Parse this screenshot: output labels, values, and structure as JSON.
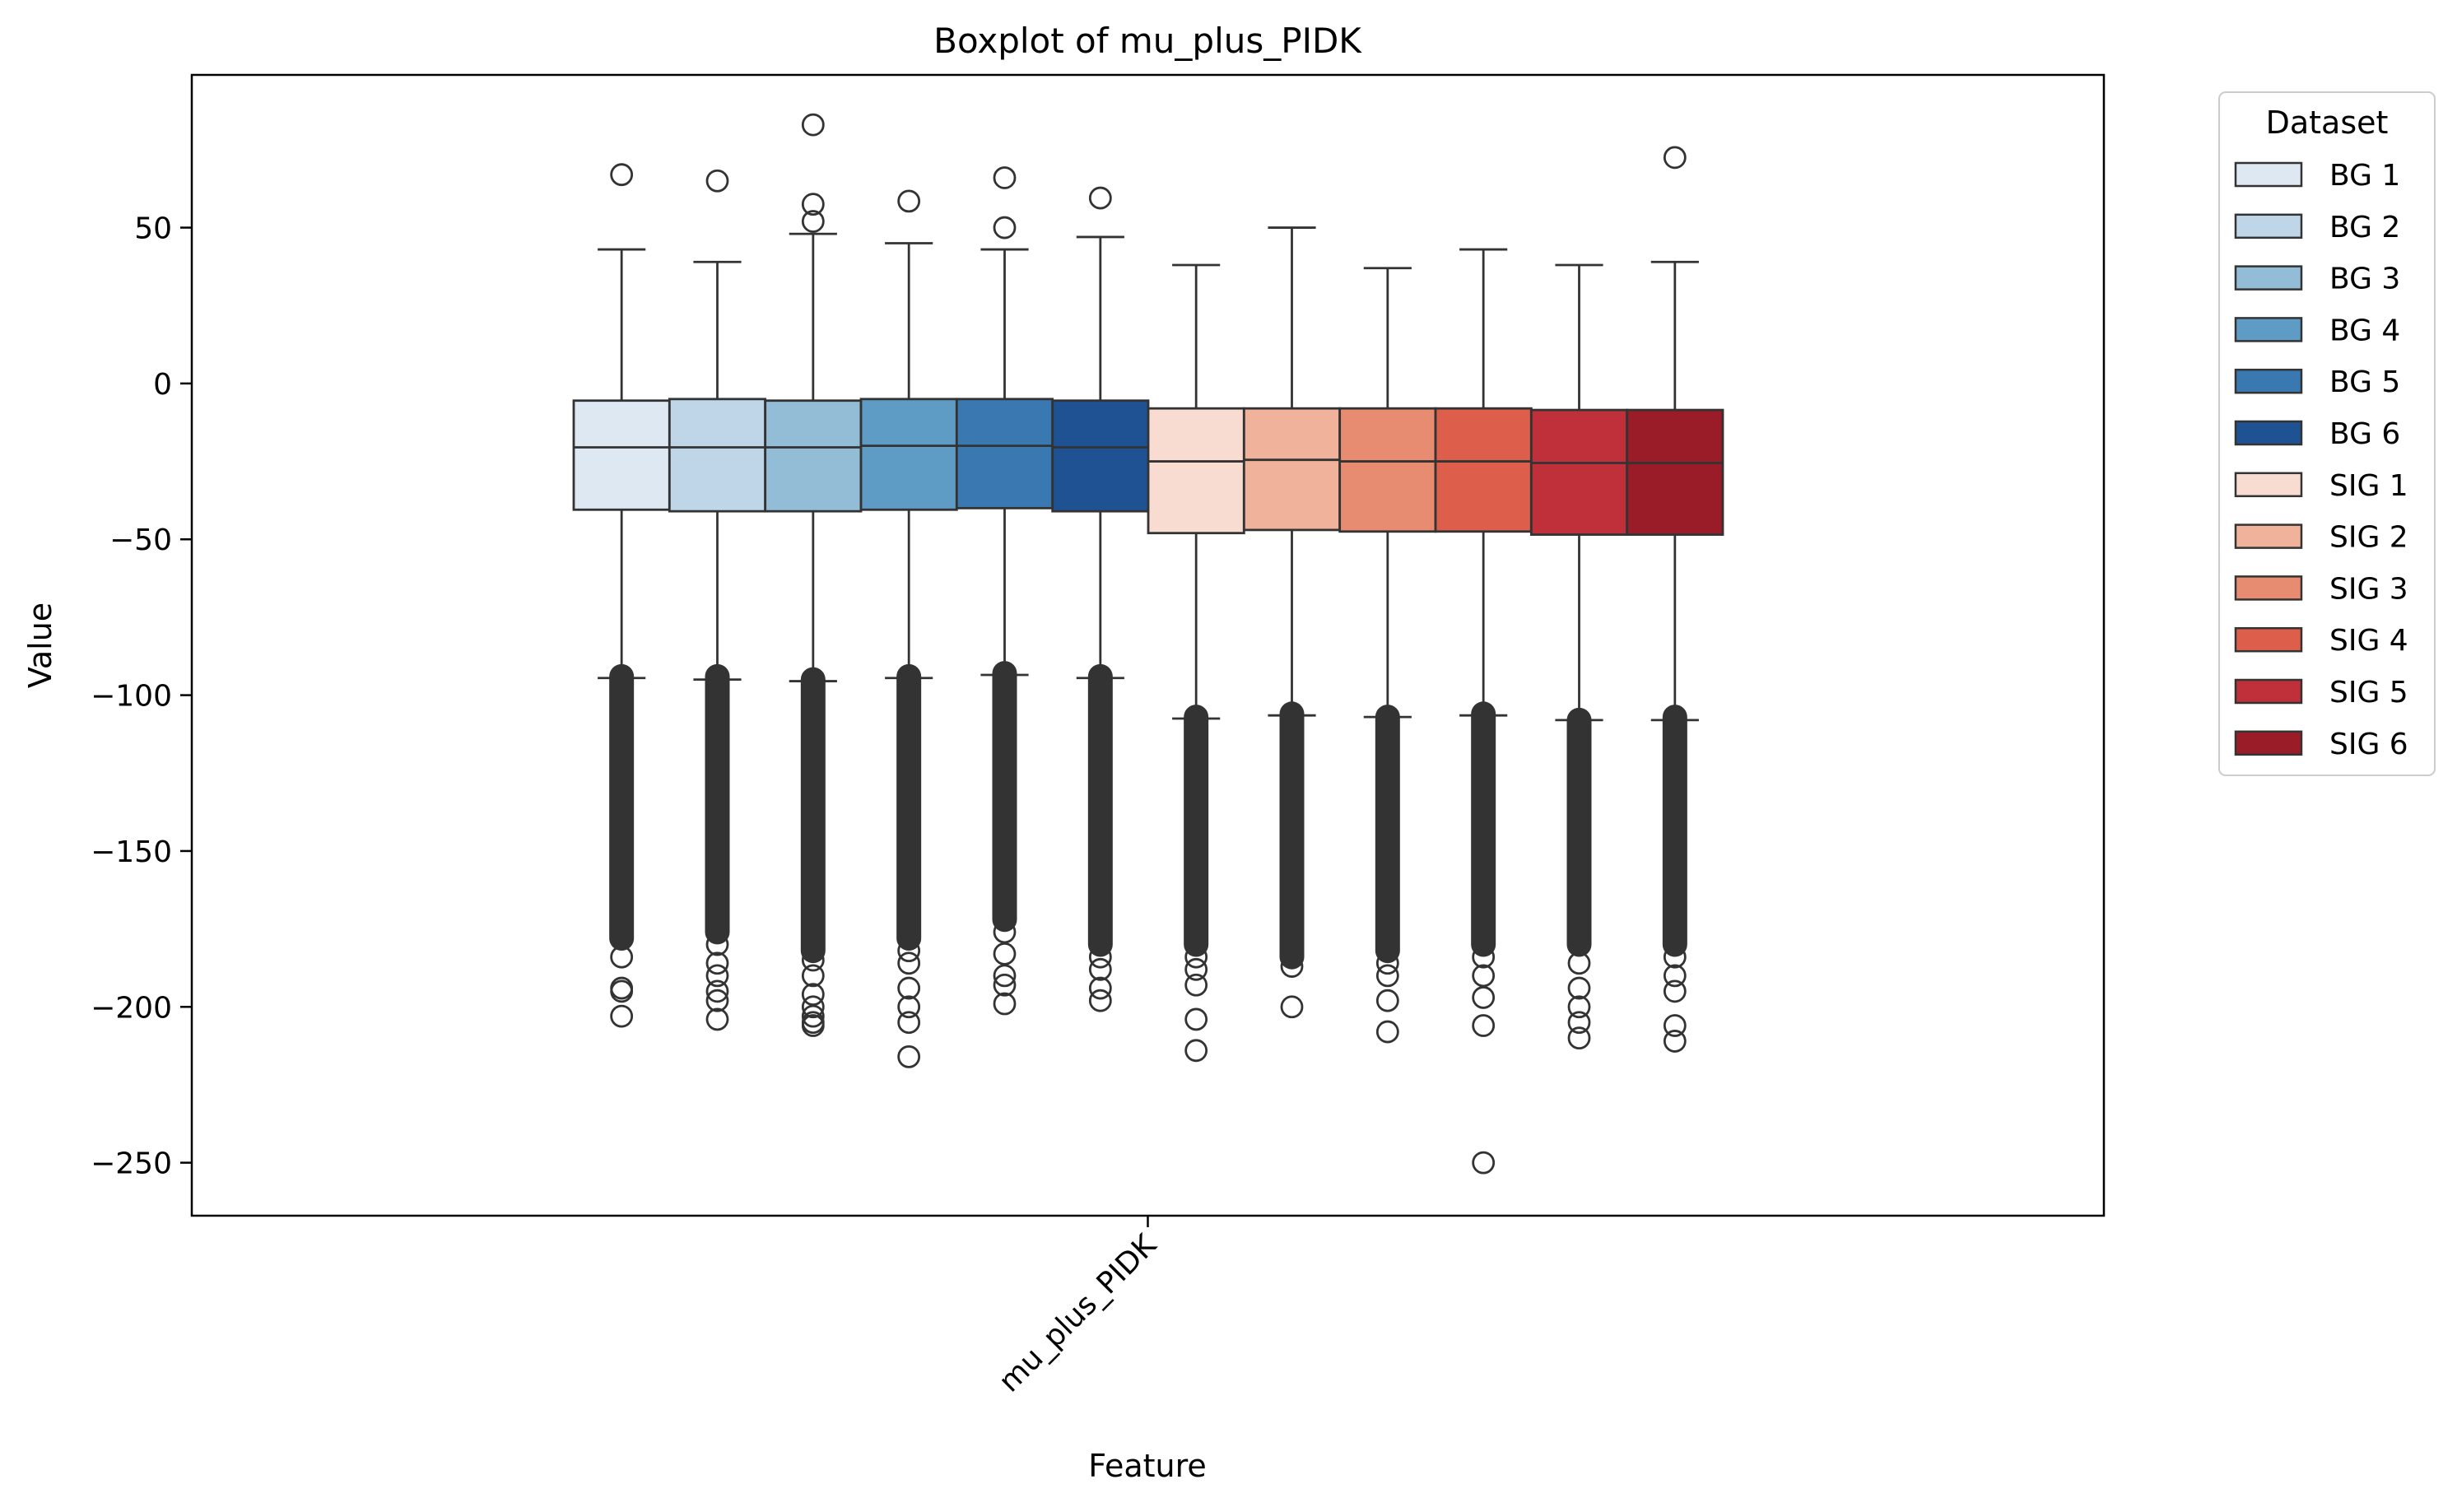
{
  "chart_data": {
    "type": "boxplot",
    "title": "Boxplot of mu_plus_PIDK",
    "xlabel": "Feature",
    "ylabel": "Value",
    "categories": [
      "mu_plus_PIDK"
    ],
    "ylim": [
      -267,
      99
    ],
    "yticks": [
      50,
      0,
      -50,
      -100,
      -150,
      -200,
      -250
    ],
    "ytick_labels": [
      "50",
      "0",
      "−50",
      "−100",
      "−150",
      "−200",
      "−250"
    ],
    "grid": false,
    "legend": {
      "title": "Dataset",
      "placement": "outside-right-top"
    },
    "series": [
      {
        "name": "BG 1",
        "color": "#dee8f3",
        "q1": -40.5,
        "median": -20.5,
        "q3": -5.5,
        "whisker_low": -94.5,
        "whisker_high": 43,
        "outlier_band": [
          -94,
          -178
        ],
        "outliers_high": [
          67
        ],
        "outliers_low": [
          -184,
          -194,
          -195,
          -203
        ]
      },
      {
        "name": "BG 2",
        "color": "#bfd6e9",
        "q1": -41,
        "median": -20.5,
        "q3": -5,
        "whisker_low": -95,
        "whisker_high": 39,
        "outlier_band": [
          -94,
          -176
        ],
        "outliers_high": [
          65
        ],
        "outliers_low": [
          -180,
          -186,
          -190,
          -195,
          -198,
          -204
        ]
      },
      {
        "name": "BG 3",
        "color": "#93bdd6",
        "q1": -41,
        "median": -20.5,
        "q3": -5.5,
        "whisker_low": -95.5,
        "whisker_high": 48,
        "outlier_band": [
          -95,
          -182
        ],
        "outliers_high": [
          52,
          57.5,
          83
        ],
        "outliers_low": [
          -185,
          -190,
          -196,
          -200,
          -203,
          -205,
          -206
        ]
      },
      {
        "name": "BG 4",
        "color": "#5e9bc5",
        "q1": -40.5,
        "median": -20,
        "q3": -5,
        "whisker_low": -94.5,
        "whisker_high": 45,
        "outlier_band": [
          -94,
          -178
        ],
        "outliers_high": [
          58.5
        ],
        "outliers_low": [
          -182,
          -186,
          -194,
          -200,
          -205,
          -216
        ]
      },
      {
        "name": "BG 5",
        "color": "#3a78b1",
        "q1": -40,
        "median": -20,
        "q3": -5,
        "whisker_low": -93.5,
        "whisker_high": 43,
        "outlier_band": [
          -93,
          -172
        ],
        "outliers_high": [
          50,
          66
        ],
        "outliers_low": [
          -176,
          -183,
          -190,
          -193,
          -199
        ]
      },
      {
        "name": "BG 6",
        "color": "#1f5293",
        "q1": -41,
        "median": -20.5,
        "q3": -5.5,
        "whisker_low": -94.5,
        "whisker_high": 47,
        "outlier_band": [
          -94,
          -180
        ],
        "outliers_high": [
          59.5
        ],
        "outliers_low": [
          -184,
          -188,
          -194,
          -198
        ]
      },
      {
        "name": "SIG 1",
        "color": "#f8dcd1",
        "q1": -48,
        "median": -25,
        "q3": -8,
        "whisker_low": -107.5,
        "whisker_high": 38,
        "outlier_band": [
          -107,
          -180
        ],
        "outliers_high": [],
        "outliers_low": [
          -184,
          -188,
          -193,
          -204,
          -214
        ]
      },
      {
        "name": "SIG 2",
        "color": "#f0b29a",
        "q1": -47,
        "median": -24.5,
        "q3": -8,
        "whisker_low": -106.5,
        "whisker_high": 50,
        "outlier_band": [
          -106,
          -184
        ],
        "outliers_high": [],
        "outliers_low": [
          -187,
          -200
        ]
      },
      {
        "name": "SIG 3",
        "color": "#e88c71",
        "q1": -47.5,
        "median": -25,
        "q3": -8,
        "whisker_low": -107,
        "whisker_high": 37,
        "outlier_band": [
          -107,
          -182
        ],
        "outliers_high": [],
        "outliers_low": [
          -186,
          -190,
          -198,
          -208
        ]
      },
      {
        "name": "SIG 4",
        "color": "#dd5f4b",
        "q1": -47.5,
        "median": -25,
        "q3": -8,
        "whisker_low": -106.5,
        "whisker_high": 43,
        "outlier_band": [
          -106,
          -180
        ],
        "outliers_high": [],
        "outliers_low": [
          -184,
          -190,
          -197,
          -206,
          -250
        ]
      },
      {
        "name": "SIG 5",
        "color": "#c0303a",
        "q1": -48.5,
        "median": -25.5,
        "q3": -8.5,
        "whisker_low": -108,
        "whisker_high": 38,
        "outlier_band": [
          -108,
          -180
        ],
        "outliers_high": [],
        "outliers_low": [
          -186,
          -194,
          -200,
          -205,
          -210
        ]
      },
      {
        "name": "SIG 6",
        "color": "#9a1c28",
        "q1": -48.5,
        "median": -25.5,
        "q3": -8.5,
        "whisker_low": -108,
        "whisker_high": 39,
        "outlier_band": [
          -107,
          -180
        ],
        "outliers_high": [
          72.5
        ],
        "outliers_low": [
          -184,
          -190,
          -195,
          -206,
          -211
        ]
      }
    ]
  }
}
